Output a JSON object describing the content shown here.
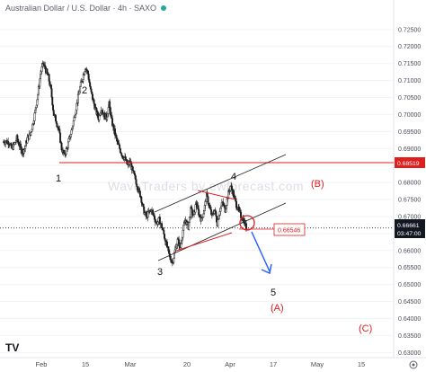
{
  "header": {
    "title": "Australian Dollar / U.S. Dollar · 4h · SAXO",
    "status_dot_color": "#27a69a"
  },
  "watermark": "WaveTraders by ewforecast.com",
  "logo": "TV",
  "colors": {
    "candle": "#1e1e1e",
    "level_line": "#e01e1e",
    "channel": "#2a2a2a",
    "wedge": "#e01e1e",
    "arrow": "#2962ff",
    "price_tag": "#131722",
    "level_tag": "#e01e1e"
  },
  "chart_data": {
    "type": "candlestick",
    "title": "Australian Dollar / U.S. Dollar · 4h · SAXO",
    "ylim": [
      0.6285,
      0.7305
    ],
    "yticks": [
      "0.72500",
      "0.72000",
      "0.71500",
      "0.71000",
      "0.70500",
      "0.70000",
      "0.69500",
      "0.69000",
      "0.68500",
      "0.68000",
      "0.67500",
      "0.67000",
      "0.66500",
      "0.66000",
      "0.65500",
      "0.65000",
      "0.64500",
      "0.64000",
      "0.63500",
      "0.63000"
    ],
    "xticks": [
      "Feb",
      "15",
      "Mar",
      "20",
      "Apr",
      "17",
      "May",
      "15"
    ],
    "price_path": [
      [
        0.692,
        0.692,
        0.692,
        0.69,
        0.691
      ],
      [
        0.693,
        0.691,
        0.689,
        0.69,
        0.693
      ],
      [
        0.694,
        0.697,
        0.701,
        0.706,
        0.712
      ],
      [
        0.715,
        0.713,
        0.711,
        0.707,
        0.7
      ],
      [
        0.698,
        0.695,
        0.69,
        0.688,
        0.69
      ],
      [
        0.693,
        0.696,
        0.7,
        0.704,
        0.708
      ],
      [
        0.711,
        0.714,
        0.712,
        0.707,
        0.704
      ],
      [
        0.701,
        0.699,
        0.702,
        0.7,
        0.699
      ],
      [
        0.703,
        0.698,
        0.695,
        0.692,
        0.69
      ],
      [
        0.688,
        0.687,
        0.685,
        0.686,
        0.683
      ],
      [
        0.681,
        0.678,
        0.676,
        0.672,
        0.67
      ],
      [
        0.671,
        0.672,
        0.67,
        0.668,
        0.669
      ],
      [
        0.667,
        0.664,
        0.661,
        0.658,
        0.6565
      ],
      [
        0.66,
        0.663,
        0.661,
        0.666,
        0.669
      ],
      [
        0.667,
        0.672,
        0.67,
        0.674,
        0.671
      ],
      [
        0.669,
        0.672,
        0.676,
        0.673,
        0.67
      ],
      [
        0.672,
        0.668,
        0.672,
        0.674,
        0.672
      ],
      [
        0.676,
        0.679,
        0.677,
        0.674,
        0.672
      ],
      [
        0.67,
        0.669,
        0.6666
      ]
    ],
    "horizontal_level": 0.68519,
    "current_price": "0.66661",
    "countdown": "03:47:00",
    "level_label": "0.68519",
    "box_label": "0.66546",
    "wave_labels": {
      "w1": "1",
      "w2": "2",
      "w3": "3",
      "w4": "4",
      "w5": "5",
      "wA": "(A)",
      "wB": "(B)",
      "wC": "(C)"
    }
  }
}
